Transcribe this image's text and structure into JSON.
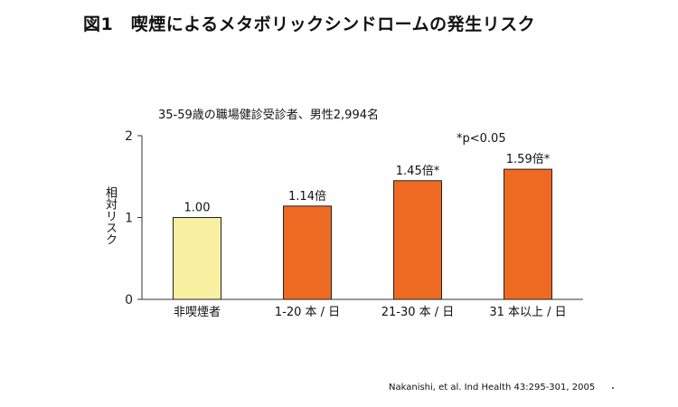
{
  "header": {
    "title": "図1　喫煙によるメタボリックシンドロームの発生リスク"
  },
  "chart_data": {
    "type": "bar",
    "title": "",
    "subtitle": "35-59歳の職場健診受診者、男性2,994名",
    "ylabel": "相対リスク",
    "xlabel": "",
    "ylim": [
      0,
      2
    ],
    "yticks": [
      "0",
      "1",
      "2"
    ],
    "grid": false,
    "legend": "none",
    "categories": [
      "非喫煙者",
      "1-20 本 / 日",
      "21-30 本 / 日",
      "31 本以上 / 日"
    ],
    "values": [
      1.0,
      1.14,
      1.45,
      1.59
    ],
    "data_labels": [
      "1.00",
      "1.14倍",
      "1.45倍*",
      "1.59倍*"
    ],
    "colors": [
      "#f7f0a0",
      "#ee6a22",
      "#ee6a22",
      "#ee6a22"
    ],
    "bar_outline_color": "#222222",
    "annotation": "*p<0.05"
  },
  "footer": {
    "source": "Nakanishi, et al. Ind Health 43:295-301, 2005"
  }
}
